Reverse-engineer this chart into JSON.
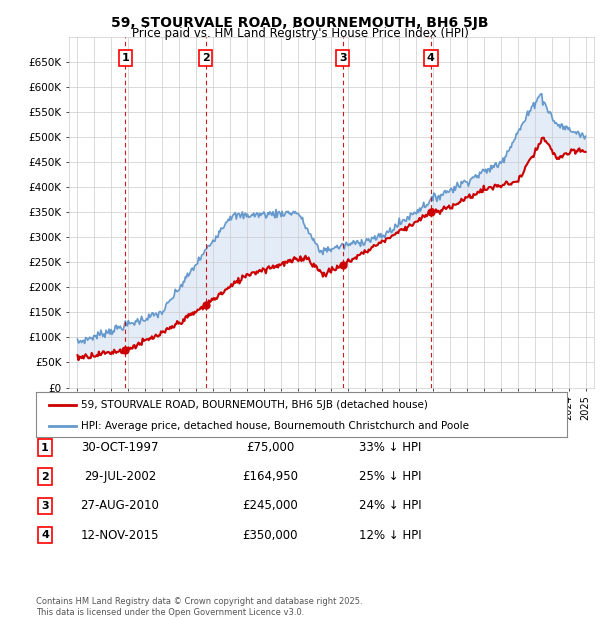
{
  "title": "59, STOURVALE ROAD, BOURNEMOUTH, BH6 5JB",
  "subtitle": "Price paid vs. HM Land Registry's House Price Index (HPI)",
  "ylim": [
    0,
    700000
  ],
  "yticks": [
    0,
    50000,
    100000,
    150000,
    200000,
    250000,
    300000,
    350000,
    400000,
    450000,
    500000,
    550000,
    600000,
    650000
  ],
  "ytick_labels": [
    "£0",
    "£50K",
    "£100K",
    "£150K",
    "£200K",
    "£250K",
    "£300K",
    "£350K",
    "£400K",
    "£450K",
    "£500K",
    "£550K",
    "£600K",
    "£650K"
  ],
  "background_color": "#ffffff",
  "plot_bg_color": "#ffffff",
  "shade_color": "#dce8f5",
  "grid_color": "#cccccc",
  "red_line_color": "#cc0000",
  "blue_line_color": "#6699cc",
  "vline_color": "#cc0000",
  "sale_marker_color": "#cc0000",
  "xlim_left": 1994.5,
  "xlim_right": 2025.5,
  "purchases": [
    {
      "num": 1,
      "date_x": 1997.83,
      "price": 75000,
      "label": "30-OCT-1997",
      "price_str": "£75,000",
      "hpi_str": "33% ↓ HPI"
    },
    {
      "num": 2,
      "date_x": 2002.57,
      "price": 164950,
      "label": "29-JUL-2002",
      "price_str": "£164,950",
      "hpi_str": "25% ↓ HPI"
    },
    {
      "num": 3,
      "date_x": 2010.66,
      "price": 245000,
      "label": "27-AUG-2010",
      "price_str": "£245,000",
      "hpi_str": "24% ↓ HPI"
    },
    {
      "num": 4,
      "date_x": 2015.87,
      "price": 350000,
      "label": "12-NOV-2015",
      "price_str": "£350,000",
      "hpi_str": "12% ↓ HPI"
    }
  ],
  "legend_line1": "59, STOURVALE ROAD, BOURNEMOUTH, BH6 5JB (detached house)",
  "legend_line2": "HPI: Average price, detached house, Bournemouth Christchurch and Poole",
  "footnote": "Contains HM Land Registry data © Crown copyright and database right 2025.\nThis data is licensed under the Open Government Licence v3.0.",
  "table_rows": [
    [
      "1",
      "30-OCT-1997",
      "£75,000",
      "33% ↓ HPI"
    ],
    [
      "2",
      "29-JUL-2002",
      "£164,950",
      "25% ↓ HPI"
    ],
    [
      "3",
      "27-AUG-2010",
      "£245,000",
      "24% ↓ HPI"
    ],
    [
      "4",
      "12-NOV-2015",
      "£350,000",
      "12% ↓ HPI"
    ]
  ]
}
